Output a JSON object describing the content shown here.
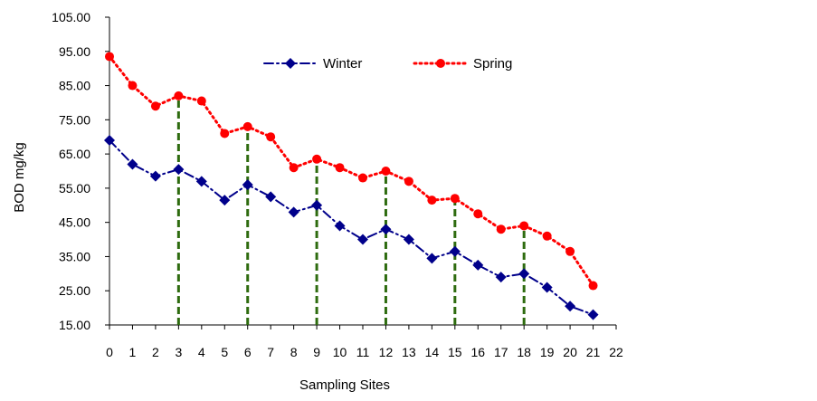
{
  "chart_data": {
    "type": "line",
    "title": "",
    "xlabel": "Sampling Sites",
    "ylabel": "BOD mg/kg",
    "xlim": [
      0,
      22
    ],
    "ylim": [
      15,
      105
    ],
    "x_ticks": [
      "0",
      "1",
      "2",
      "3",
      "4",
      "5",
      "6",
      "7",
      "8",
      "9",
      "10",
      "11",
      "12",
      "13",
      "14",
      "15",
      "16",
      "17",
      "18",
      "19",
      "20",
      "21",
      "22"
    ],
    "y_ticks": [
      "15.00",
      "25.00",
      "35.00",
      "45.00",
      "55.00",
      "65.00",
      "75.00",
      "85.00",
      "95.00",
      "105.00"
    ],
    "grid": false,
    "legend_position": "top-center",
    "x": [
      0,
      1,
      2,
      3,
      4,
      5,
      6,
      7,
      8,
      9,
      10,
      11,
      12,
      13,
      14,
      15,
      16,
      17,
      18,
      19,
      20,
      21
    ],
    "series": [
      {
        "name": "Winter",
        "color": "#00008B",
        "marker": "diamond",
        "line_style": "dash-dot",
        "values": [
          69,
          62,
          58.5,
          60.5,
          57,
          51.5,
          56,
          52.5,
          48,
          50,
          44,
          40,
          43,
          40,
          34.5,
          36.5,
          32.5,
          29,
          30,
          26,
          20.5,
          18
        ]
      },
      {
        "name": "Spring",
        "color": "#FF0000",
        "marker": "circle",
        "line_style": "dotted",
        "values": [
          93.5,
          85,
          79,
          82,
          80.5,
          71,
          73,
          70,
          61,
          63.5,
          61,
          58,
          60,
          57,
          51.5,
          52,
          47.5,
          43,
          44,
          41,
          36.5,
          26.5
        ]
      }
    ],
    "reference_lines": {
      "color": "#2E6B0F",
      "style": "dashed",
      "x": [
        3,
        6,
        9,
        12,
        15,
        18
      ]
    }
  }
}
